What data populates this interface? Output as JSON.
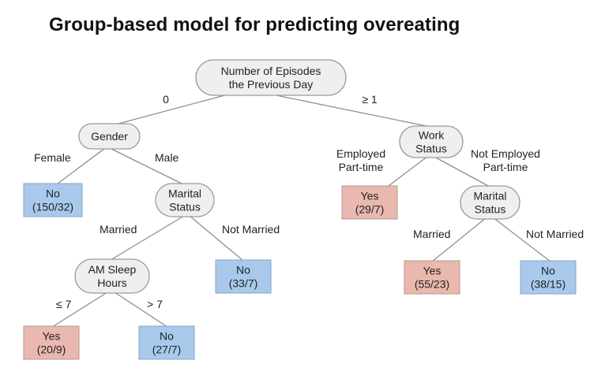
{
  "title": "Group-based model for predicting overeating",
  "nodes": {
    "root": [
      "Number of Episodes",
      "the Previous Day"
    ],
    "gender": [
      "Gender"
    ],
    "work_status": [
      "Work",
      "Status"
    ],
    "leaf_female": [
      "No",
      "(150/32)"
    ],
    "marital_left": [
      "Marital",
      "Status"
    ],
    "leaf_employed": [
      "Yes",
      "(29/7)"
    ],
    "marital_right": [
      "Marital",
      "Status"
    ],
    "am_sleep": [
      "AM Sleep",
      "Hours"
    ],
    "leaf_not_married_left": [
      "No",
      "(33/7)"
    ],
    "leaf_married_right": [
      "Yes",
      "(55/23)"
    ],
    "leaf_not_married_right": [
      "No",
      "(38/15)"
    ],
    "leaf_le7": [
      "Yes",
      "(20/9)"
    ],
    "leaf_gt7": [
      "No",
      "(27/7)"
    ]
  },
  "edges": {
    "root_gender": [
      "0"
    ],
    "root_work": [
      "≥ 1"
    ],
    "gender_female": [
      "Female"
    ],
    "gender_male": [
      "Male"
    ],
    "work_employed": [
      "Employed",
      "Part-time"
    ],
    "work_not_employed": [
      "Not Employed",
      "Part-time"
    ],
    "marital_left_married": [
      "Married"
    ],
    "marital_left_not_married": [
      "Not Married"
    ],
    "marital_right_married": [
      "Married"
    ],
    "marital_right_not_married": [
      "Not Married"
    ],
    "sleep_le7": [
      "≤ 7"
    ],
    "sleep_gt7": [
      "> 7"
    ]
  }
}
